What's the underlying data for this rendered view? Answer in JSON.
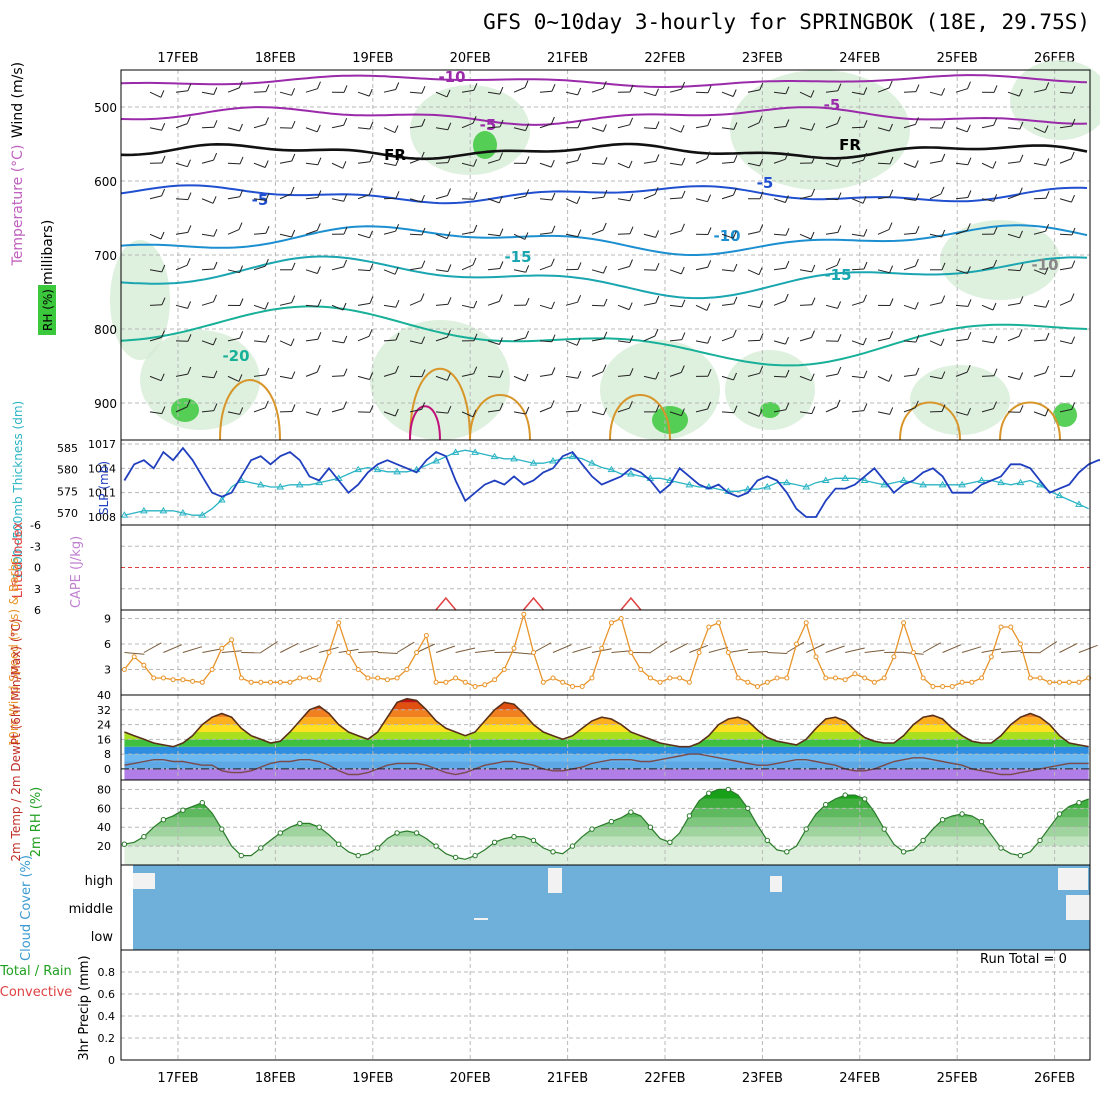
{
  "title": "GFS 0~10day 3-hourly for SPRINGBOK (18E, 29.75S)",
  "colors": {
    "grid": "#b8b8b8",
    "sky": "#6fb0da",
    "rhGreen": "#3cc83c",
    "slp": "#1f3fbf",
    "thick": "#2ab4c4",
    "wind": "#e8942a",
    "cape": "#e04040",
    "purple": "#9a2aaa",
    "blue": "#2050d0"
  },
  "chart_data": [
    {
      "name": "upper-air",
      "type": "contour",
      "dates": [
        "17FEB",
        "18FEB",
        "19FEB",
        "20FEB",
        "21FEB",
        "22FEB",
        "23FEB",
        "24FEB",
        "25FEB",
        "26FEB"
      ],
      "ylabel": "(millibars)",
      "ylabels": [
        "Wind (m/s)",
        "Temperature (°C)",
        "RH (%)"
      ],
      "yticks": [
        500,
        600,
        700,
        800,
        900
      ],
      "ylim": [
        450,
        950
      ],
      "contour_labels": [
        "-10",
        "-5",
        "-5",
        "FR",
        "FR",
        "-5",
        "-5",
        "-10",
        "-15",
        "-15",
        "-20",
        "-10"
      ]
    },
    {
      "name": "slp-thickness",
      "type": "line",
      "ylabel_left": "1000~500mb Thickness (dm)",
      "ylabel_right": "SLP (mb)",
      "left_ticks": [
        "585",
        "580",
        "575",
        "570"
      ],
      "right_ticks": [
        "1017",
        "1014",
        "1011",
        "1008"
      ],
      "series": [
        {
          "name": "SLP (mb)",
          "values": [
            1012.5,
            1014.5,
            1015,
            1014,
            1016,
            1015,
            1016.5,
            1015,
            1013,
            1011,
            1010.5,
            1011,
            1013,
            1015,
            1015.5,
            1014.5,
            1015.5,
            1016,
            1015,
            1013,
            1012.5,
            1014,
            1012.5,
            1011,
            1012,
            1013.5,
            1014.5,
            1015,
            1014.5,
            1014,
            1013.5,
            1015,
            1016,
            1015.5,
            1012.5,
            1010,
            1011,
            1012,
            1012.5,
            1012,
            1013,
            1012,
            1012.5,
            1013.5,
            1014,
            1015.5,
            1016,
            1014.5,
            1013,
            1012,
            1012.5,
            1013,
            1014,
            1013.5,
            1012.5,
            1011,
            1012,
            1014,
            1013,
            1012,
            1011.5,
            1012,
            1011,
            1010.5,
            1011,
            1012.5,
            1013,
            1012.5,
            1011,
            1009,
            1008,
            1008,
            1010,
            1011.5,
            1011.5,
            1012,
            1013,
            1014,
            1012.5,
            1011,
            1012,
            1012.5,
            1013.5,
            1014,
            1013,
            1011,
            1011,
            1011,
            1012,
            1012.5,
            1013,
            1014.5,
            1014.5,
            1014,
            1012.5,
            1011,
            1011.5,
            1012,
            1013.5,
            1014.5,
            1015,
            1015
          ]
        },
        {
          "name": "Thickness (dm)",
          "values": [
            569.5,
            570,
            570.5,
            570.5,
            570.5,
            570.5,
            570,
            569.5,
            569.5,
            571,
            573,
            576,
            577.5,
            577,
            576.5,
            576,
            576,
            576.5,
            576.5,
            576.5,
            577,
            577.5,
            578,
            579,
            580,
            580.5,
            580,
            579.5,
            579.5,
            579.5,
            580,
            581,
            582,
            583,
            584,
            584.5,
            584,
            583.5,
            583,
            582.5,
            582.5,
            582,
            581.5,
            581.5,
            582,
            582.5,
            583,
            582.5,
            581.5,
            580.5,
            580,
            579,
            579,
            578.5,
            578,
            578,
            577.5,
            577,
            576.5,
            576,
            576,
            575.5,
            575,
            575,
            575.5,
            575.5,
            576,
            577,
            577,
            576.5,
            576,
            577,
            577.5,
            578,
            578,
            578,
            577.5,
            577,
            576.5,
            577,
            577.5,
            577,
            576.5,
            576.5,
            576.5,
            576.5,
            576.5,
            577,
            577.5,
            577.5,
            577,
            576.5,
            577,
            577.5,
            576.5,
            575,
            574,
            573,
            572,
            571
          ]
        }
      ]
    },
    {
      "name": "stability",
      "type": "line",
      "ylabel_left": "Lifted Index",
      "ylabel_right": "CAPE (J/kg)",
      "yticks": [
        "-6",
        "-3",
        "0",
        "3",
        "6"
      ],
      "ylim": [
        -6,
        6
      ],
      "cape_peaks_days": [
        2.75,
        3.65,
        4.65
      ]
    },
    {
      "name": "surface-wind",
      "type": "line",
      "ylabel": "10m Wind Speed (m/s) & Barbs",
      "yticks": [
        "9",
        "6",
        "3"
      ],
      "ylim": [
        0,
        10
      ],
      "series": [
        {
          "name": "10m Wind Speed (m/s)",
          "values": [
            3,
            4.5,
            3.5,
            2,
            2,
            1.8,
            1.8,
            1.6,
            1.5,
            3,
            5.5,
            6.5,
            2,
            1.5,
            1.5,
            1.5,
            1.5,
            1.5,
            2,
            2,
            1.8,
            5,
            8.5,
            5,
            3,
            2,
            2,
            1.8,
            2,
            3,
            5,
            7,
            1.5,
            1.5,
            2,
            1.5,
            1,
            1.2,
            1.8,
            3,
            5.5,
            9.5,
            5,
            1.5,
            2,
            1.5,
            1,
            1,
            2,
            5.5,
            8.5,
            9,
            5,
            3,
            2,
            1.5,
            2,
            2,
            1.5,
            5,
            8,
            8.5,
            5,
            2,
            1.5,
            1,
            1.5,
            2,
            2,
            6,
            8.5,
            4.5,
            2,
            2,
            1.8,
            2.5,
            2,
            1.5,
            2,
            4.5,
            8.5,
            5,
            2,
            1,
            1,
            1,
            1.5,
            1.5,
            2,
            4.5,
            8,
            8,
            6,
            2,
            2,
            1.5,
            1.5,
            1.5,
            1.5,
            2
          ]
        }
      ]
    },
    {
      "name": "temperature",
      "type": "area",
      "ylabel": "2m Temp / 2m DewPt (6hr Min/Max) (°C)",
      "yticks": [
        "40",
        "32",
        "24",
        "16",
        "8",
        "0"
      ],
      "ylim": [
        -6,
        40
      ],
      "series": [
        {
          "name": "2m Temp (°C)",
          "values": [
            20,
            18,
            16,
            14,
            13,
            12,
            14,
            18,
            24,
            28,
            30,
            28,
            22,
            18,
            16,
            14,
            15,
            20,
            26,
            32,
            34,
            30,
            24,
            20,
            18,
            16,
            20,
            28,
            36,
            38,
            37,
            32,
            26,
            22,
            20,
            18,
            20,
            26,
            32,
            36,
            35,
            30,
            24,
            20,
            18,
            16,
            18,
            22,
            26,
            28,
            27,
            24,
            20,
            18,
            16,
            14,
            13,
            12,
            12,
            14,
            18,
            24,
            27,
            28,
            26,
            21,
            17,
            15,
            14,
            13,
            16,
            22,
            27,
            28,
            26,
            21,
            17,
            15,
            14,
            14,
            18,
            24,
            28,
            29,
            27,
            22,
            18,
            15,
            14,
            14,
            18,
            24,
            28,
            30,
            28,
            24,
            18,
            14,
            13,
            12
          ]
        },
        {
          "name": "2m DewPt (°C)",
          "values": [
            2,
            3,
            4,
            5,
            5,
            4,
            4,
            3,
            2,
            2,
            -1,
            -2,
            -2,
            -1,
            1,
            3,
            4,
            4,
            5,
            5,
            4,
            2,
            -1,
            -3,
            -3,
            -2,
            0,
            2,
            3,
            3,
            3,
            2,
            0,
            -2,
            -3,
            -2,
            0,
            2,
            3,
            4,
            4,
            3,
            2,
            0,
            -1,
            -1,
            0,
            1,
            3,
            4,
            5,
            5,
            5,
            4,
            4,
            5,
            6,
            7,
            8,
            8,
            7,
            6,
            5,
            4,
            3,
            2,
            2,
            3,
            4,
            5,
            5,
            4,
            3,
            2,
            0,
            -1,
            -1,
            0,
            2,
            4,
            5,
            6,
            6,
            5,
            4,
            3,
            2,
            0,
            -1,
            -2,
            -3,
            -3,
            -2,
            -1,
            0,
            1,
            2,
            3,
            3,
            3
          ]
        }
      ]
    },
    {
      "name": "relative-humidity",
      "type": "area",
      "ylabel": "2m RH (%)",
      "yticks": [
        "80",
        "60",
        "40",
        "20"
      ],
      "ylim": [
        0,
        90
      ],
      "series": [
        {
          "name": "2m RH (%)",
          "values": [
            22,
            24,
            30,
            40,
            48,
            52,
            58,
            62,
            66,
            55,
            38,
            20,
            10,
            10,
            18,
            26,
            34,
            40,
            44,
            44,
            40,
            32,
            22,
            14,
            10,
            12,
            18,
            28,
            34,
            36,
            34,
            28,
            20,
            12,
            8,
            6,
            10,
            16,
            24,
            28,
            30,
            30,
            26,
            18,
            14,
            12,
            20,
            30,
            38,
            42,
            46,
            50,
            56,
            52,
            40,
            28,
            24,
            34,
            52,
            68,
            76,
            80,
            80,
            74,
            60,
            42,
            26,
            16,
            14,
            20,
            38,
            54,
            64,
            70,
            74,
            74,
            70,
            56,
            38,
            22,
            14,
            16,
            26,
            38,
            48,
            52,
            54,
            52,
            46,
            32,
            18,
            12,
            10,
            14,
            26,
            40,
            54,
            62,
            66,
            70
          ]
        }
      ]
    },
    {
      "name": "cloud-cover",
      "type": "bar",
      "ylabel": "Cloud Cover (%)",
      "levels": [
        "high",
        "middle",
        "low"
      ],
      "value_pct": 100
    },
    {
      "name": "precipitation",
      "type": "bar",
      "ylabel": "3hr Precip (mm)",
      "side_labels": [
        "Total / Rain",
        "Convective"
      ],
      "run_total": "Run Total = 0",
      "yticks": [
        "0.8",
        "0.6",
        "0.4",
        "0.2",
        "0"
      ],
      "ylim": [
        0,
        1
      ],
      "values": []
    }
  ]
}
